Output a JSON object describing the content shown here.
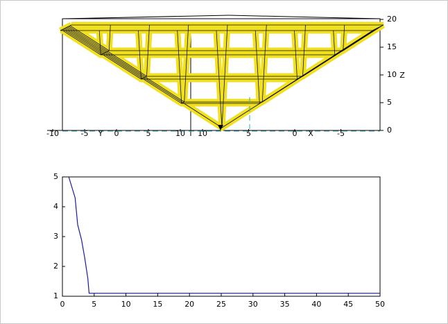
{
  "chart_data": [
    {
      "type": "surface",
      "x": [
        -10,
        -7.5,
        -5,
        -2.5,
        0,
        2.5,
        5,
        7.5,
        10
      ],
      "y": [
        -10,
        -7.5,
        -5,
        -2.5,
        0,
        2.5,
        5,
        7.5,
        10
      ],
      "z": [
        [
          18,
          18,
          18,
          18,
          18,
          18,
          18,
          18,
          18
        ],
        [
          18,
          13.5,
          13.5,
          13.5,
          13.5,
          13.5,
          13.5,
          13.5,
          18
        ],
        [
          18,
          13.5,
          9,
          9,
          9,
          9,
          9,
          13.5,
          18
        ],
        [
          18,
          13.5,
          9,
          4.5,
          4.5,
          4.5,
          9,
          13.5,
          18
        ],
        [
          18,
          13.5,
          9,
          4.5,
          0,
          4.5,
          9,
          13.5,
          18
        ],
        [
          18,
          13.5,
          9,
          4.5,
          4.5,
          4.5,
          9,
          13.5,
          18
        ],
        [
          18,
          13.5,
          9,
          9,
          9,
          9,
          9,
          13.5,
          18
        ],
        [
          18,
          13.5,
          13.5,
          13.5,
          13.5,
          13.5,
          13.5,
          13.5,
          18
        ],
        [
          18,
          18,
          18,
          18,
          18,
          18,
          18,
          18,
          18
        ]
      ],
      "color": "#f0e020",
      "zlim": [
        0,
        20
      ],
      "zticks": [
        0,
        5,
        10,
        15,
        20
      ],
      "xticks": [
        10,
        5,
        0,
        -5
      ],
      "yticks": [
        -10,
        -5,
        0,
        5,
        10
      ],
      "xlabel": "X",
      "ylabel": "Y",
      "zlabel": "Z"
    },
    {
      "type": "line",
      "x": [
        1,
        2,
        2.4,
        3,
        3.5,
        4,
        4.2,
        10,
        20,
        30,
        40,
        50
      ],
      "values": [
        5,
        4.3,
        3.4,
        2.9,
        2.3,
        1.6,
        1.1,
        1.1,
        1.1,
        1.1,
        1.1,
        1.1
      ],
      "color": "#1a1aa0",
      "xlim": [
        0,
        50
      ],
      "xticks": [
        0,
        5,
        10,
        15,
        20,
        25,
        30,
        35,
        40,
        45,
        50
      ],
      "ylim": [
        1,
        5
      ],
      "yticks": [
        1,
        2,
        3,
        4,
        5
      ]
    }
  ]
}
